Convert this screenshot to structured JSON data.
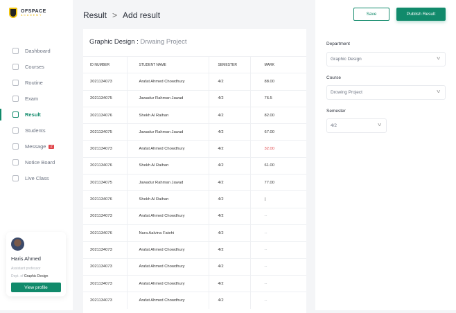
{
  "logo": {
    "name": "OFSPACE",
    "sub": "ACADEMY"
  },
  "sidebar": {
    "items": [
      {
        "label": "Dashboard",
        "icon": "dashboard-icon"
      },
      {
        "label": "Courses",
        "icon": "book-icon"
      },
      {
        "label": "Routine",
        "icon": "calendar-icon"
      },
      {
        "label": "Exam",
        "icon": "exam-icon"
      },
      {
        "label": "Result",
        "icon": "result-icon",
        "active": true
      },
      {
        "label": "Students",
        "icon": "students-icon"
      },
      {
        "label": "Message",
        "icon": "message-icon",
        "badge": "2"
      },
      {
        "label": "Notice Board",
        "icon": "notice-icon"
      },
      {
        "label": "Live Class",
        "icon": "live-icon"
      }
    ]
  },
  "profile": {
    "name": "Haris Ahmed",
    "role": "Assistant professor",
    "dept_prefix": "Dept. of",
    "dept": "Graphic Design",
    "button": "View profile"
  },
  "header": {
    "crumb1": "Result",
    "sep": ">",
    "crumb2": "Add result"
  },
  "card": {
    "dept": "Graphic Design :",
    "course": "Drwaing Project"
  },
  "table": {
    "headers": [
      "ID NUMBER",
      "STUDENT NAME",
      "SEMESTER",
      "MARK"
    ],
    "rows": [
      [
        "2021134073",
        "Arafat Ahmed Chowdhury",
        "4/2",
        "88.00"
      ],
      [
        "2021134075",
        "Jawadur Rahman Jawad",
        "4/2",
        "76.5"
      ],
      [
        "2021134076",
        "Shekh Al Raihan",
        "4/2",
        "82.00"
      ],
      [
        "2021134075",
        "Jawadur Rahman Jawad",
        "4/2",
        "67.00"
      ],
      [
        "2021134073",
        "Arafat Ahmed Chowdhury",
        "4/2",
        "32.00"
      ],
      [
        "2021134076",
        "Shekh Al Raihan",
        "4/2",
        "61.00"
      ],
      [
        "2021134075",
        "Jawadur Rahman Jawad",
        "4/2",
        "77.00"
      ],
      [
        "2021134076",
        "Shekh Al Raihan",
        "4/2",
        "|"
      ],
      [
        "2021134073",
        "Arafat Ahmed Chowdhury",
        "4/2",
        "--"
      ],
      [
        "2021134076",
        "Nura Aalvina Fatehi",
        "4/2",
        "--"
      ],
      [
        "2021134073",
        "Arafat Ahmed Chowdhury",
        "4/2",
        "--"
      ],
      [
        "2021134073",
        "Arafat Ahmed Chowdhury",
        "4/2",
        "--"
      ],
      [
        "2021134073",
        "Arafat Ahmed Chowdhury",
        "4/2",
        "--"
      ],
      [
        "2021134073",
        "Arafat Ahmed Chowdhury",
        "4/2",
        "--"
      ]
    ]
  },
  "actions": {
    "save": "Save",
    "publish": "Publish Result"
  },
  "filters": {
    "department_label": "Department",
    "department": "Graphic Design",
    "course_label": "Course",
    "course": "Drowing Project",
    "semester_label": "Semester",
    "semester": "4/2"
  },
  "colors": {
    "accent": "#118a6b",
    "danger": "#e0454a"
  }
}
